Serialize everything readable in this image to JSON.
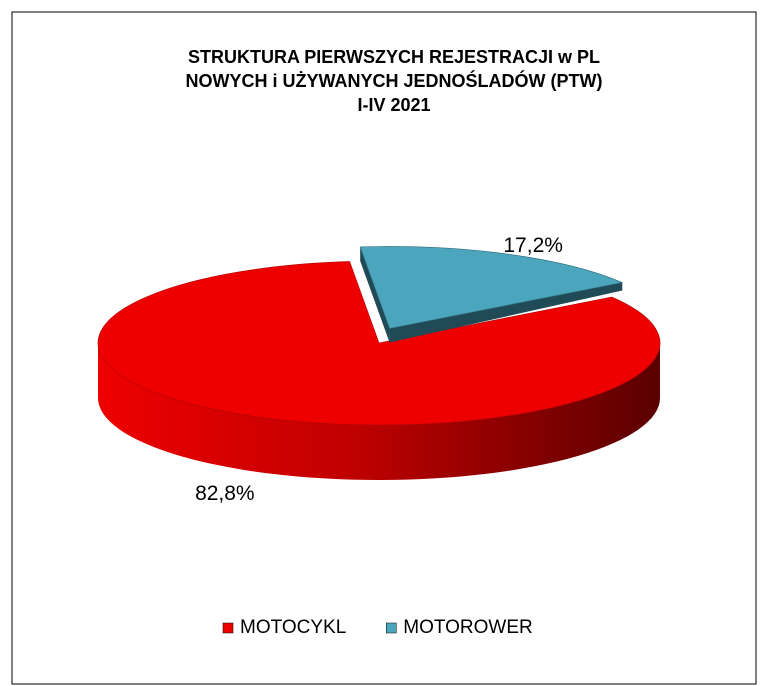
{
  "chart_data": {
    "type": "pie",
    "title": [
      "STRUKTURA PIERWSZYCH REJESTRACJI w PL",
      "NOWYCH i UŻYWANYCH JEDNOŚLADÓW (PTW)",
      "I-IV 2021"
    ],
    "categories": [
      "MOTOROWER",
      "MOTOCYKL"
    ],
    "values": [
      17.2,
      82.8
    ],
    "value_labels": [
      "17,2%",
      "82,8%"
    ],
    "colors": [
      "#4aa5bd",
      "#ee0000"
    ],
    "legend": "bottom"
  }
}
